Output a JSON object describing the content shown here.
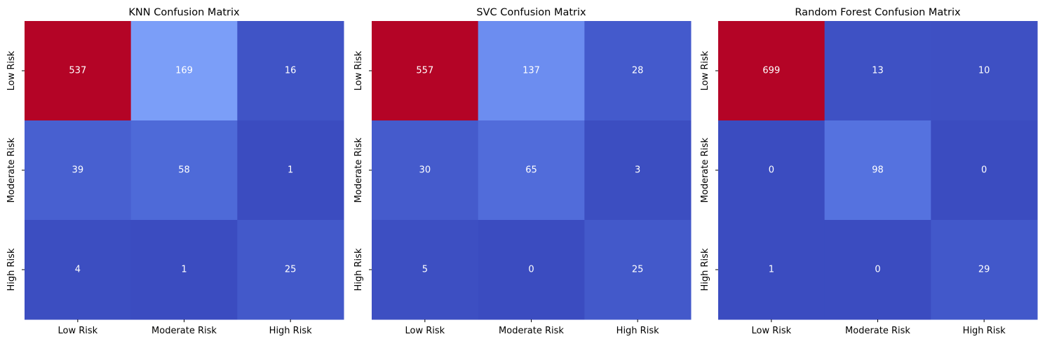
{
  "chart_data": [
    {
      "type": "heatmap",
      "title": "KNN Confusion Matrix",
      "xlabel": "",
      "ylabel": "",
      "x_categories": [
        "Low Risk",
        "Moderate Risk",
        "High Risk"
      ],
      "y_categories": [
        "Low Risk",
        "Moderate Risk",
        "High Risk"
      ],
      "values": [
        [
          537,
          169,
          16
        ],
        [
          39,
          58,
          1
        ],
        [
          4,
          1,
          25
        ]
      ],
      "colormap": "coolwarm",
      "colorbar": false,
      "annotations": true
    },
    {
      "type": "heatmap",
      "title": "SVC Confusion Matrix",
      "xlabel": "",
      "ylabel": "",
      "x_categories": [
        "Low Risk",
        "Moderate Risk",
        "High Risk"
      ],
      "y_categories": [
        "Low Risk",
        "Moderate Risk",
        "High Risk"
      ],
      "values": [
        [
          557,
          137,
          28
        ],
        [
          30,
          65,
          3
        ],
        [
          5,
          0,
          25
        ]
      ],
      "colormap": "coolwarm",
      "colorbar": false,
      "annotations": true
    },
    {
      "type": "heatmap",
      "title": "Random Forest Confusion Matrix",
      "xlabel": "",
      "ylabel": "",
      "x_categories": [
        "Low Risk",
        "Moderate Risk",
        "High Risk"
      ],
      "y_categories": [
        "Low Risk",
        "Moderate Risk",
        "High Risk"
      ],
      "values": [
        [
          699,
          13,
          10
        ],
        [
          0,
          98,
          0
        ],
        [
          1,
          0,
          29
        ]
      ],
      "colormap": "coolwarm",
      "colorbar": false,
      "annotations": true
    }
  ],
  "colors": {
    "background": "#ffffff",
    "annotation_text": "#ffffff",
    "label_text": "#000000",
    "tick_color": "#000000"
  }
}
